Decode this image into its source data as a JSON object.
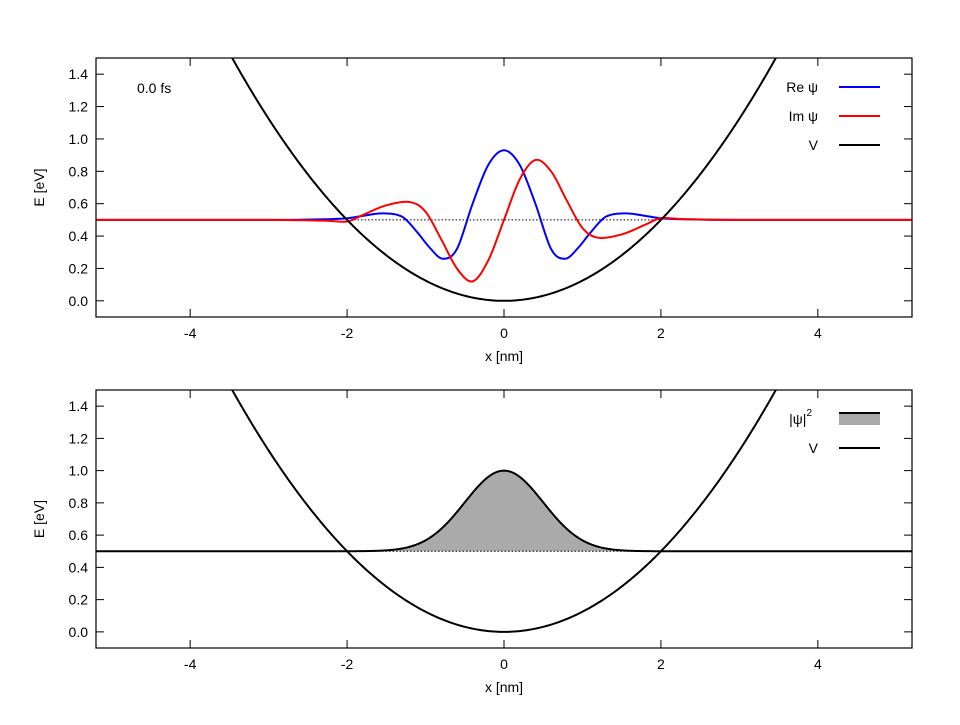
{
  "chart_data": [
    {
      "type": "line",
      "panel": "top",
      "xlabel": "x [nm]",
      "ylabel": "E [eV]",
      "xlim": [
        -5.2,
        5.2
      ],
      "ylim": [
        -0.1,
        1.5
      ],
      "xticks": [
        "-4",
        "-2",
        "0",
        "2",
        "4"
      ],
      "yticks": [
        "0.0",
        "0.2",
        "0.4",
        "0.6",
        "0.8",
        "1.0",
        "1.2",
        "1.4"
      ],
      "annotation": "0.0 fs",
      "grid": false,
      "legend_position": "top-right",
      "reference_line": {
        "y": 0.5,
        "style": "dotted"
      },
      "series": [
        {
          "name": "Re ψ",
          "color": "#0000ff",
          "x": [
            -5.2,
            -3.0,
            -2.2,
            -2.0,
            -1.8,
            -1.55,
            -1.3,
            -1.1,
            -0.95,
            -0.78,
            -0.6,
            -0.4,
            -0.2,
            0.0,
            0.2,
            0.4,
            0.6,
            0.78,
            0.95,
            1.1,
            1.3,
            1.55,
            1.8,
            2.0,
            2.2,
            3.0,
            5.2
          ],
          "y": [
            0.5,
            0.5,
            0.505,
            0.51,
            0.525,
            0.54,
            0.52,
            0.42,
            0.33,
            0.26,
            0.32,
            0.6,
            0.84,
            0.93,
            0.84,
            0.6,
            0.32,
            0.26,
            0.33,
            0.42,
            0.52,
            0.54,
            0.525,
            0.51,
            0.505,
            0.5,
            0.5
          ]
        },
        {
          "name": "Im ψ",
          "color": "#ff0000",
          "x": [
            -5.2,
            -3.0,
            -2.3,
            -2.0,
            -1.8,
            -1.5,
            -1.2,
            -1.0,
            -0.8,
            -0.6,
            -0.4,
            -0.2,
            0.0,
            0.2,
            0.4,
            0.6,
            0.8,
            1.0,
            1.2,
            1.5,
            1.8,
            2.0,
            2.3,
            3.0,
            5.2
          ],
          "y": [
            0.5,
            0.5,
            0.495,
            0.49,
            0.53,
            0.59,
            0.61,
            0.55,
            0.38,
            0.2,
            0.12,
            0.25,
            0.5,
            0.75,
            0.87,
            0.8,
            0.62,
            0.45,
            0.39,
            0.41,
            0.47,
            0.51,
            0.505,
            0.5,
            0.5
          ]
        },
        {
          "name": "V",
          "color": "#000000",
          "function": "0.125*x^2",
          "x": [
            -3.5,
            -3.0,
            -2.5,
            -2.0,
            -1.5,
            -1.0,
            -0.5,
            0.0,
            0.5,
            1.0,
            1.5,
            2.0,
            2.5,
            3.0,
            3.5
          ],
          "y": [
            1.53,
            1.125,
            0.781,
            0.5,
            0.281,
            0.125,
            0.031,
            0.0,
            0.031,
            0.125,
            0.281,
            0.5,
            0.781,
            1.125,
            1.53
          ]
        }
      ]
    },
    {
      "type": "area",
      "panel": "bottom",
      "xlabel": "x [nm]",
      "ylabel": "E [eV]",
      "xlim": [
        -5.2,
        5.2
      ],
      "ylim": [
        -0.1,
        1.5
      ],
      "xticks": [
        "-4",
        "-2",
        "0",
        "2",
        "4"
      ],
      "yticks": [
        "0.0",
        "0.2",
        "0.4",
        "0.6",
        "0.8",
        "1.0",
        "1.2",
        "1.4"
      ],
      "grid": false,
      "legend_position": "top-right",
      "reference_line": {
        "y": 0.5,
        "style": "dotted"
      },
      "series": [
        {
          "name": "|ψ|²",
          "legend_text": "|ψ|",
          "legend_superscript": "2",
          "color": "#000000",
          "fill": "#aaaaaa",
          "baseline": 0.5,
          "function": "0.5 + 0.5*exp(-x^2/0.5)",
          "x": [
            -5.2,
            -2.0,
            -1.5,
            -1.2,
            -1.0,
            -0.8,
            -0.6,
            -0.4,
            -0.2,
            0.0,
            0.2,
            0.4,
            0.6,
            0.8,
            1.0,
            1.2,
            1.5,
            2.0,
            5.2
          ],
          "y": [
            0.5,
            0.5,
            0.506,
            0.528,
            0.568,
            0.639,
            0.744,
            0.863,
            0.962,
            1.0,
            0.962,
            0.863,
            0.744,
            0.639,
            0.568,
            0.528,
            0.506,
            0.5,
            0.5
          ]
        },
        {
          "name": "V",
          "color": "#000000",
          "function": "0.125*x^2",
          "x": [
            -3.5,
            -3.0,
            -2.5,
            -2.0,
            -1.5,
            -1.0,
            -0.5,
            0.0,
            0.5,
            1.0,
            1.5,
            2.0,
            2.5,
            3.0,
            3.5
          ],
          "y": [
            1.53,
            1.125,
            0.781,
            0.5,
            0.281,
            0.125,
            0.031,
            0.0,
            0.031,
            0.125,
            0.281,
            0.5,
            0.781,
            1.125,
            1.53
          ]
        }
      ]
    }
  ]
}
